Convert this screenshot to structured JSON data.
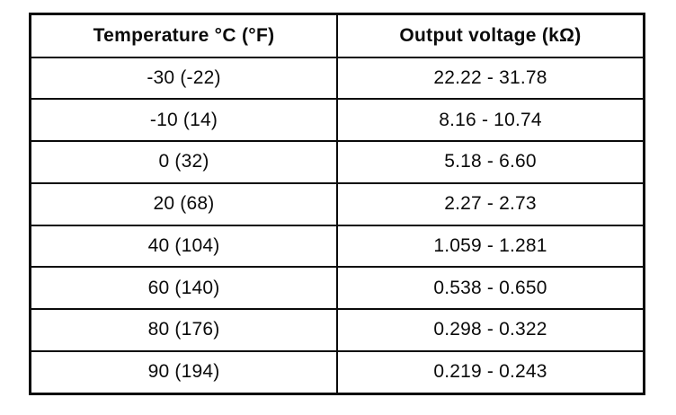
{
  "page": {
    "background_color": "#ffffff",
    "ink_color": "#0b0b0b"
  },
  "table": {
    "columns": [
      {
        "label": "Temperature °C (°F)"
      },
      {
        "label": "Output voltage (kΩ)"
      }
    ],
    "rows": [
      {
        "temp": "-30 (-22)",
        "voltage": "22.22 - 31.78"
      },
      {
        "temp": "-10 (14)",
        "voltage": "8.16 - 10.74"
      },
      {
        "temp": "0 (32)",
        "voltage": "5.18 - 6.60"
      },
      {
        "temp": "20 (68)",
        "voltage": "2.27 - 2.73"
      },
      {
        "temp": "40 (104)",
        "voltage": "1.059 - 1.281"
      },
      {
        "temp": "60 (140)",
        "voltage": "0.538 - 0.650"
      },
      {
        "temp": "80 (176)",
        "voltage": "0.298 - 0.322"
      },
      {
        "temp": "90 (194)",
        "voltage": "0.219 - 0.243"
      }
    ]
  }
}
